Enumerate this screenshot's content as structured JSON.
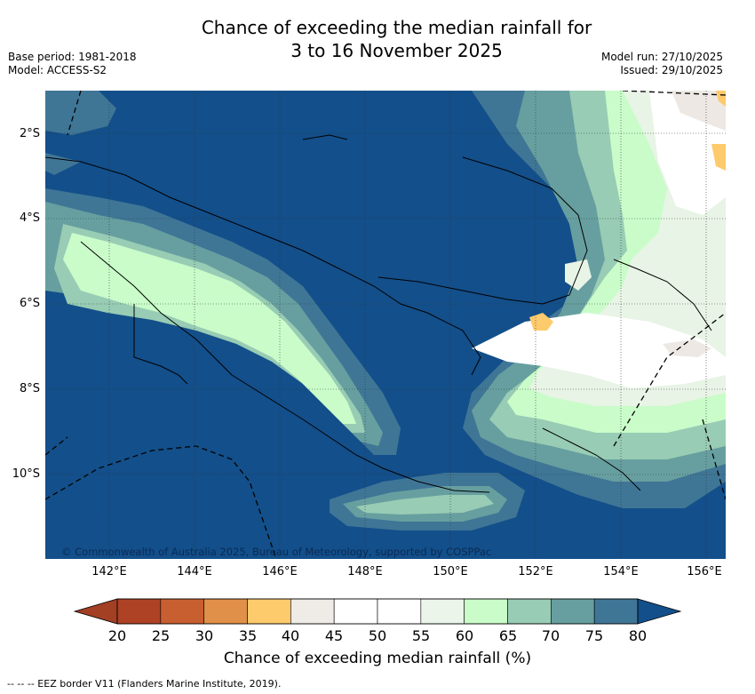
{
  "title": {
    "line1": "Chance of exceeding the median rainfall for",
    "line2": "3 to 16 November 2025"
  },
  "meta_left": {
    "base_period": "Base period: 1981-2018",
    "model": "Model: ACCESS-S2"
  },
  "meta_right": {
    "model_run": "Model run: 27/10/2025",
    "issued": "Issued: 29/10/2025"
  },
  "map": {
    "latitude_labels": [
      "2°S",
      "4°S",
      "6°S",
      "8°S",
      "10°S"
    ],
    "longitude_labels": [
      "142°E",
      "144°E",
      "146°E",
      "148°E",
      "150°E",
      "152°E",
      "154°E",
      "156°E"
    ],
    "copyright": "© Commonwealth of Australia 2025, Bureau of Meteorology, supported by COSPPac",
    "colors": {
      "c75_80": "#134f8a",
      "c70_75": "#3f7696",
      "c65_70": "#679fa0",
      "c60_65": "#98ccb4",
      "c55_60": "#c9fcc9",
      "c50_55": "#e8f4e6",
      "c45_50": "#ffffff",
      "c40_45": "#ede8e3",
      "c35_40": "#fdca6c"
    }
  },
  "colorbar": {
    "ticks": [
      "20",
      "25",
      "30",
      "35",
      "40",
      "45",
      "50",
      "55",
      "60",
      "65",
      "70",
      "75",
      "80"
    ],
    "colors": [
      "#ae4225",
      "#c85f31",
      "#e09048",
      "#fdca6c",
      "#efebe7",
      "#ffffff",
      "#ffffff",
      "#ebf5ea",
      "#c9fcc9",
      "#98ccb4",
      "#679fa0",
      "#3f7696"
    ],
    "low_extend_color": "#a33f23",
    "high_extend_color": "#134f8a",
    "label": "Chance of exceeding median rainfall (%)"
  },
  "legend_footer": "--  --  -- EEZ border V11 (Flanders Marine Institute, 2019)."
}
